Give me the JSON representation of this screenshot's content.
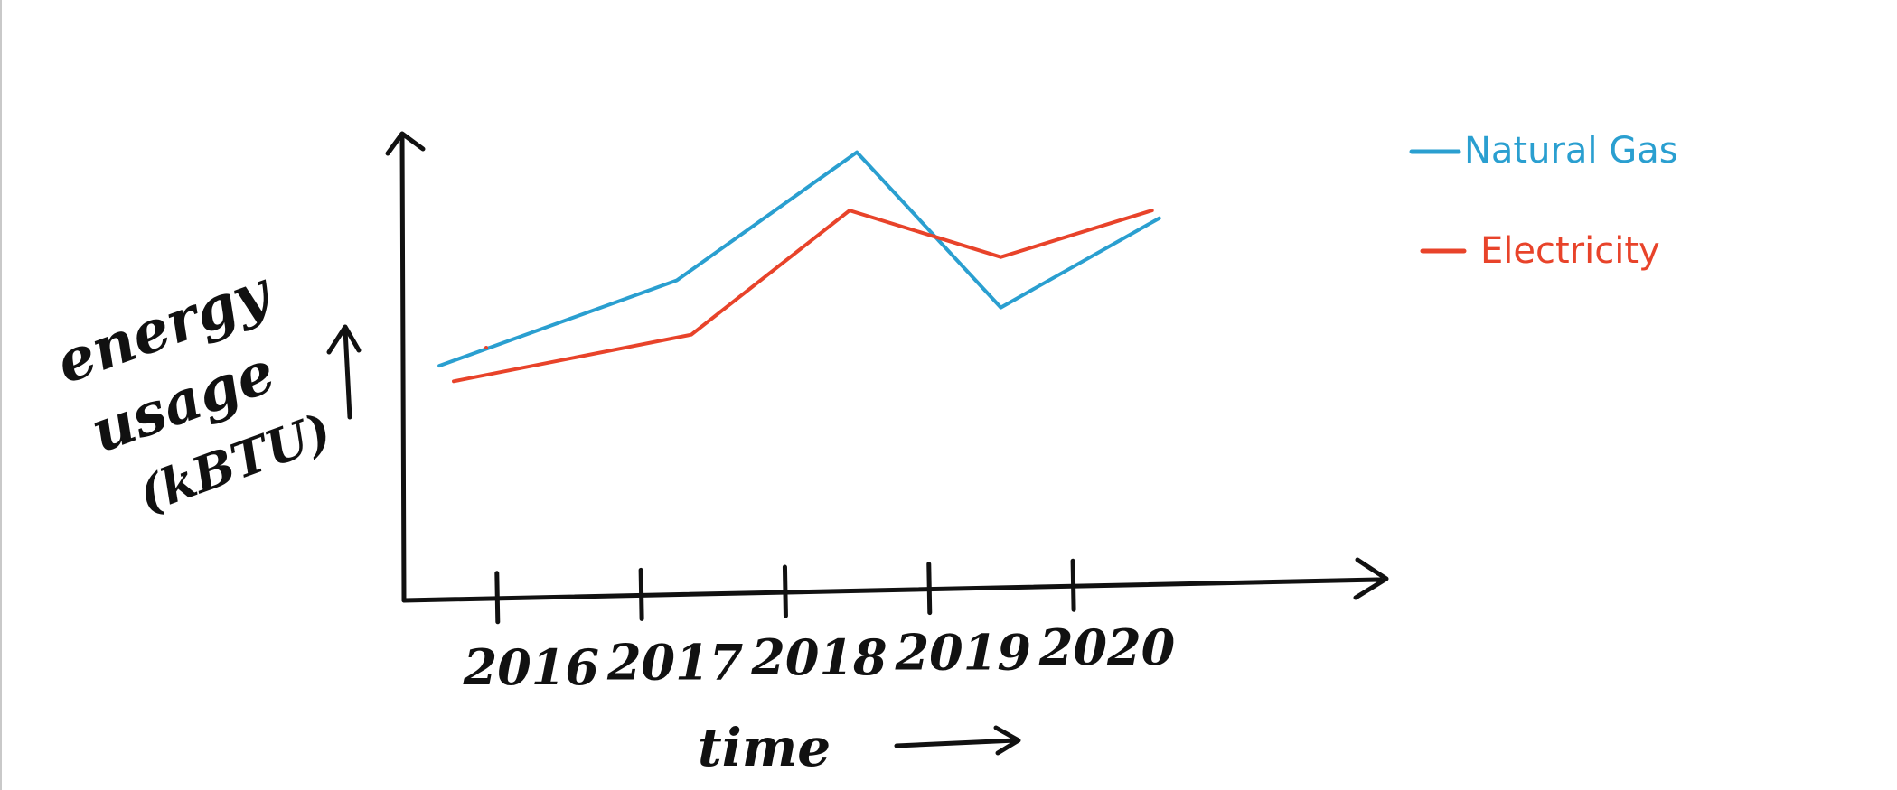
{
  "chart_data": {
    "type": "line",
    "title": "",
    "xlabel": "time",
    "ylabel_lines": [
      "energy",
      "usage",
      "(kBTU)"
    ],
    "x": [
      2016,
      2017,
      2018,
      2019,
      2020
    ],
    "tick_labels": [
      "2016",
      "2017",
      "2018",
      "2019",
      "2020"
    ],
    "xlim": [
      2015.7,
      2021.6
    ],
    "ylim": [
      0,
      10
    ],
    "grid": false,
    "legend_position": "top-right",
    "series": [
      {
        "name": "Natural Gas",
        "color": "#2a9fd0",
        "x": [
          2015.6,
          2017.25,
          2018.5,
          2019.5,
          2020.6
        ],
        "values": [
          4.3,
          6.5,
          9.8,
          5.8,
          8.1
        ]
      },
      {
        "name": "Electricity",
        "color": "#e8432a",
        "x": [
          2015.7,
          2017.35,
          2018.45,
          2019.5,
          2020.55
        ],
        "values": [
          3.9,
          5.1,
          8.3,
          7.1,
          8.3
        ]
      }
    ]
  }
}
